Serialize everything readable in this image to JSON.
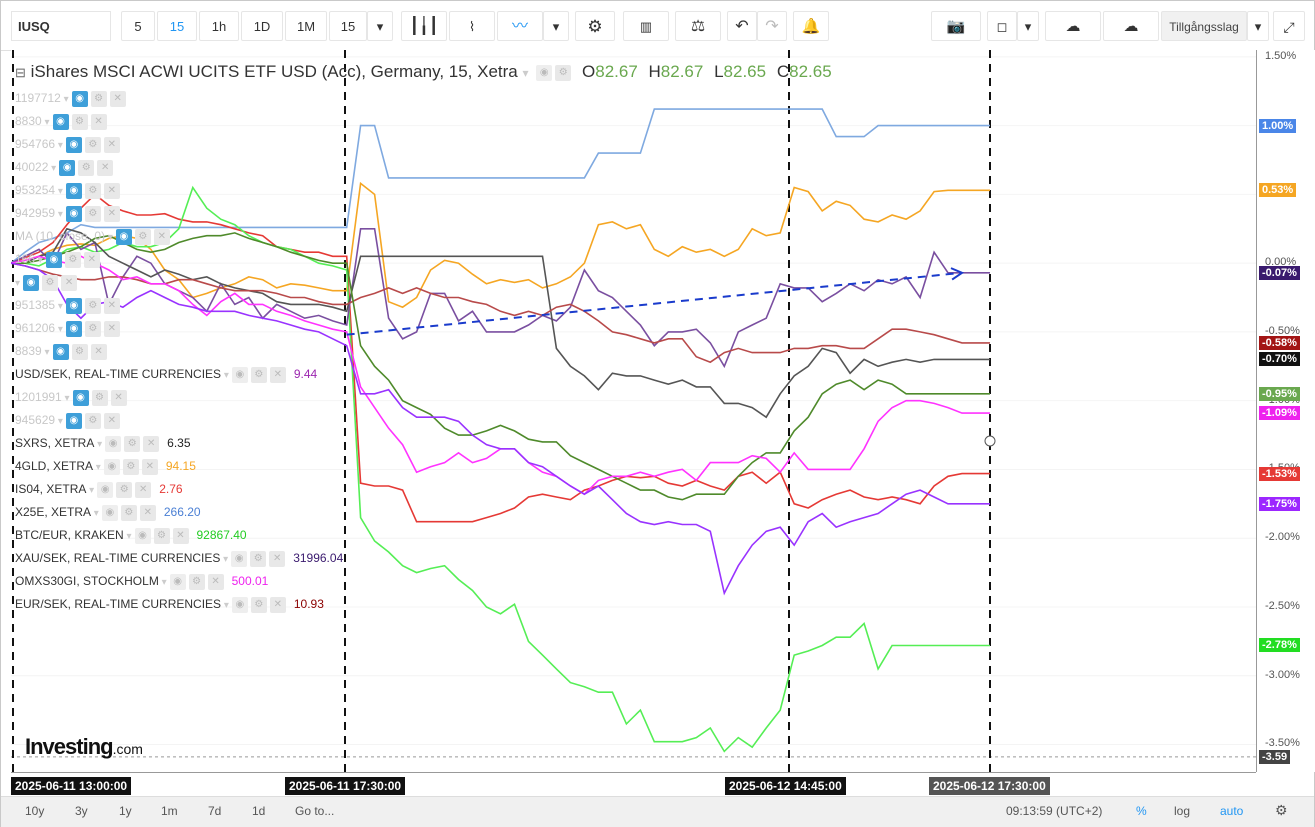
{
  "toolbar": {
    "symbol": "IUSQ",
    "intervals": [
      "5",
      "15",
      "1h",
      "1D",
      "1M",
      "15"
    ],
    "active_interval": "15",
    "asset_class_label": "Tillgångsslag"
  },
  "chart_title": {
    "name": "iShares MSCI ACWI UCITS ETF USD (Acc), Germany, 15, Xetra",
    "o_label": "O",
    "o": "82.67",
    "h_label": "H",
    "h": "82.67",
    "l_label": "L",
    "l": "82.65",
    "c_label": "C",
    "c": "82.65"
  },
  "legend": [
    {
      "label": "1197712",
      "value": "",
      "faded": true
    },
    {
      "label": "8830",
      "value": "",
      "faded": true
    },
    {
      "label": "954766",
      "value": "",
      "faded": true
    },
    {
      "label": "40022",
      "value": "",
      "faded": true
    },
    {
      "label": "953254",
      "value": "",
      "faded": true
    },
    {
      "label": "942959",
      "value": "",
      "faded": true
    },
    {
      "label": "MA (10, close, 0)",
      "value": "",
      "faded": true
    },
    {
      "label": "166",
      "value": "",
      "faded": true
    },
    {
      "label": "",
      "value": "",
      "faded": true
    },
    {
      "label": "951385",
      "value": "",
      "faded": true
    },
    {
      "label": "961206",
      "value": "",
      "faded": true
    },
    {
      "label": "8839",
      "value": "",
      "faded": true
    },
    {
      "label": "USD/SEK, REAL-TIME CURRENCIES",
      "value": "9.44",
      "color": "#9c27b0",
      "faded": false
    },
    {
      "label": "1201991",
      "value": "",
      "faded": true
    },
    {
      "label": "945629",
      "value": "",
      "faded": true
    },
    {
      "label": "SXRS, XETRA",
      "value": "6.35",
      "color": "#222222",
      "faded": false
    },
    {
      "label": "4GLD, XETRA",
      "value": "94.15",
      "color": "#f5a623",
      "faded": false
    },
    {
      "label": "IS04, XETRA",
      "value": "2.76",
      "color": "#e53935",
      "faded": false
    },
    {
      "label": "X25E, XETRA",
      "value": "266.20",
      "color": "#4a7fd4",
      "faded": false
    },
    {
      "label": "BTC/EUR, KRAKEN",
      "value": "92867.40",
      "color": "#22cc22",
      "faded": false
    },
    {
      "label": "XAU/SEK, REAL-TIME CURRENCIES",
      "value": "31996.04",
      "color": "#3a1a6e",
      "faded": false
    },
    {
      "label": "OMXS30GI, STOCKHOLM",
      "value": "500.01",
      "color": "#ee22ee",
      "faded": false
    },
    {
      "label": "EUR/SEK, REAL-TIME CURRENCIES",
      "value": "10.93",
      "color": "#8b0000",
      "faded": false
    }
  ],
  "y_axis": {
    "ticks": [
      "1.50%",
      "1.00%",
      "0.50%",
      "0.00%",
      "-0.50%",
      "-1.00%",
      "-1.50%",
      "-2.00%",
      "-2.50%",
      "-3.00%",
      "-3.50%"
    ],
    "tags": [
      {
        "label": "1.00%",
        "value": 1.0,
        "color": "#4a86e8"
      },
      {
        "label": "0.53%",
        "value": 0.53,
        "color": "#f5a623"
      },
      {
        "label": "-0.07%",
        "value": -0.07,
        "color": "#3a1a6e"
      },
      {
        "label": "-0.58%",
        "value": -0.58,
        "color": "#a31515"
      },
      {
        "label": "-0.70%",
        "value": -0.7,
        "color": "#111111"
      },
      {
        "label": "-0.95%",
        "value": -0.95,
        "color": "#6aa84f"
      },
      {
        "label": "-1.09%",
        "value": -1.09,
        "color": "#ee22ee"
      },
      {
        "label": "-1.53%",
        "value": -1.53,
        "color": "#e53935"
      },
      {
        "label": "-1.75%",
        "value": -1.75,
        "color": "#9c27ff"
      },
      {
        "label": "-2.78%",
        "value": -2.78,
        "color": "#22dd22"
      },
      {
        "label": "-3.59",
        "value": -3.59,
        "color": "#444444"
      }
    ]
  },
  "x_axis": {
    "tags": [
      "2025-06-11 13:00:00",
      "2025-06-11 17:30:00",
      "2025-06-12 14:45:00",
      "2025-06-12 17:30:00"
    ]
  },
  "bottom_bar": {
    "ranges": [
      "10y",
      "3y",
      "1y",
      "1m",
      "7d",
      "1d",
      "Go to..."
    ],
    "clock": "09:13:59 (UTC+2)",
    "percent": "%",
    "log": "log",
    "auto": "auto"
  },
  "logo": {
    "text": "Investing",
    "suffix": ".com"
  },
  "chart_data": {
    "type": "line",
    "ylabel": "",
    "ylim": [
      -3.7,
      1.55
    ],
    "y_scale": "percent",
    "series": [
      {
        "name": "X25E, XETRA",
        "color": "#7fa9e0",
        "values": [
          0.0,
          0.08,
          0.15,
          0.18,
          0.22,
          0.28,
          0.26,
          0.26,
          0.26,
          0.26,
          0.26,
          0.26,
          0.26,
          0.26,
          0.26,
          0.26,
          0.26,
          0.26,
          0.26,
          0.26,
          0.26,
          0.26,
          0.26,
          0.26,
          0.26,
          1.0,
          1.0,
          0.62,
          0.62,
          0.62,
          0.62,
          0.62,
          0.62,
          0.62,
          0.62,
          0.62,
          0.62,
          0.62,
          0.62,
          0.62,
          0.62,
          0.62,
          0.8,
          0.8,
          0.8,
          0.8,
          1.12,
          1.12,
          1.12,
          1.12,
          1.12,
          1.12,
          1.12,
          1.12,
          1.12,
          1.12,
          1.12,
          1.12,
          1.12,
          0.92,
          0.92,
          0.92,
          1.0,
          1.0,
          1.0,
          1.0,
          1.0,
          1.0,
          1.0,
          1.0,
          1.0
        ]
      },
      {
        "name": "4GLD, XETRA",
        "color": "#f5a623",
        "values": [
          0.0,
          0.02,
          0.05,
          0.1,
          0.13,
          0.14,
          0.13,
          0.18,
          0.2,
          0.18,
          0.1,
          -0.05,
          -0.12,
          -0.25,
          -0.22,
          -0.18,
          -0.15,
          -0.1,
          -0.12,
          -0.18,
          -0.15,
          -0.16,
          -0.18,
          -0.2,
          -0.2,
          0.58,
          0.5,
          -0.28,
          -0.32,
          -0.25,
          -0.05,
          0.02,
          0.0,
          -0.08,
          -0.15,
          -0.12,
          -0.14,
          -0.12,
          -0.18,
          -0.15,
          -0.1,
          0.0,
          0.28,
          0.3,
          0.25,
          0.28,
          0.1,
          0.05,
          0.12,
          0.08,
          0.1,
          0.05,
          0.1,
          0.25,
          0.2,
          0.22,
          0.55,
          0.52,
          0.38,
          0.45,
          0.42,
          0.32,
          0.3,
          0.35,
          0.32,
          0.38,
          0.52,
          0.53,
          0.53,
          0.53,
          0.53
        ]
      },
      {
        "name": "IS04, XETRA",
        "color": "#e53935",
        "values": [
          0.0,
          0.04,
          0.08,
          0.15,
          0.28,
          0.4,
          0.5,
          0.42,
          0.38,
          0.35,
          0.35,
          0.36,
          0.32,
          0.3,
          0.3,
          0.28,
          0.25,
          0.22,
          0.2,
          0.12,
          0.1,
          0.08,
          0.08,
          0.05,
          0.05,
          -1.6,
          -1.62,
          -1.62,
          -1.65,
          -1.88,
          -1.88,
          -1.88,
          -1.88,
          -1.88,
          -1.85,
          -1.82,
          -1.78,
          -1.7,
          -1.68,
          -1.7,
          -1.72,
          -1.65,
          -1.62,
          -1.58,
          -1.55,
          -1.56,
          -1.55,
          -1.6,
          -1.62,
          -1.58,
          -1.62,
          -1.65,
          -1.55,
          -1.52,
          -1.6,
          -1.52,
          -1.75,
          -1.78,
          -1.72,
          -1.68,
          -1.65,
          -1.7,
          -1.72,
          -1.7,
          -1.72,
          -1.75,
          -1.62,
          -1.55,
          -1.53,
          -1.53,
          -1.53
        ]
      },
      {
        "name": "BTC/EUR, KRAKEN",
        "color": "#55ee55",
        "values": [
          0.0,
          0.0,
          -0.02,
          0.03,
          0.1,
          0.12,
          0.08,
          0.1,
          0.15,
          0.12,
          0.12,
          0.15,
          0.25,
          0.55,
          0.4,
          0.32,
          0.28,
          0.2,
          0.15,
          0.12,
          0.1,
          0.05,
          0.0,
          -0.02,
          -0.05,
          -1.85,
          -2.02,
          -2.1,
          -2.2,
          -2.25,
          -2.22,
          -2.2,
          -2.3,
          -2.38,
          -2.5,
          -2.55,
          -2.48,
          -2.75,
          -2.85,
          -2.95,
          -3.05,
          -3.08,
          -3.12,
          -3.12,
          -3.35,
          -3.25,
          -3.48,
          -3.48,
          -3.48,
          -3.45,
          -3.38,
          -3.55,
          -3.45,
          -3.52,
          -3.38,
          -3.25,
          -2.85,
          -2.82,
          -2.78,
          -2.72,
          -2.72,
          -2.62,
          -2.95,
          -2.78,
          -2.78,
          -2.78,
          -2.78,
          -2.78,
          -2.78,
          -2.78,
          -2.78
        ]
      },
      {
        "name": "XAU/SEK, REAL-TIME CURRENCIES",
        "color": "#7a4fa0",
        "values": [
          0.0,
          0.05,
          0.1,
          0.0,
          0.22,
          0.1,
          0.15,
          -0.3,
          -0.1,
          0.05,
          0.0,
          -0.15,
          -0.2,
          -0.25,
          -0.35,
          -0.15,
          -0.3,
          -0.25,
          -0.4,
          -0.3,
          -0.35,
          -0.4,
          -0.38,
          -0.42,
          -0.45,
          0.25,
          0.25,
          -0.4,
          -0.55,
          -0.5,
          -0.22,
          -0.22,
          -0.42,
          -0.35,
          -0.5,
          -0.5,
          -0.5,
          -0.45,
          -0.38,
          -0.42,
          -0.32,
          -0.05,
          -0.2,
          -0.25,
          -0.35,
          -0.45,
          -0.6,
          -0.5,
          -0.5,
          -0.48,
          -0.58,
          -0.75,
          -0.5,
          -0.45,
          -0.4,
          -0.15,
          -0.18,
          -0.18,
          -0.28,
          -0.22,
          -0.15,
          -0.2,
          -0.12,
          -0.15,
          -0.1,
          -0.25,
          0.08,
          -0.07,
          -0.07,
          -0.07,
          -0.07
        ]
      },
      {
        "name": "SXRS, XETRA",
        "color": "#555555",
        "values": [
          0.0,
          0.0,
          0.05,
          0.08,
          0.25,
          0.22,
          0.15,
          0.05,
          0.0,
          -0.05,
          -0.1,
          -0.05,
          -0.08,
          -0.12,
          -0.1,
          -0.15,
          -0.18,
          -0.2,
          -0.22,
          -0.28,
          -0.3,
          -0.3,
          -0.3,
          -0.32,
          -0.35,
          0.05,
          0.05,
          0.05,
          0.05,
          0.05,
          0.05,
          0.05,
          0.05,
          0.05,
          0.05,
          0.05,
          0.05,
          0.05,
          0.05,
          -0.62,
          -0.75,
          -0.82,
          -0.92,
          -0.8,
          -0.82,
          -0.82,
          -0.85,
          -0.88,
          -0.85,
          -0.9,
          -0.9,
          -1.02,
          -1.02,
          -1.05,
          -1.12,
          -0.95,
          -0.82,
          -0.75,
          -0.62,
          -0.65,
          -0.8,
          -0.7,
          -0.75,
          -0.72,
          -0.7,
          -0.72,
          -0.7,
          -0.7,
          -0.7,
          -0.7,
          -0.7
        ]
      },
      {
        "name": "EUR/SEK, REAL-TIME CURRENCIES",
        "color": "#b84a4a",
        "values": [
          0.0,
          -0.02,
          -0.05,
          -0.08,
          -0.1,
          -0.12,
          -0.12,
          -0.1,
          -0.1,
          -0.12,
          -0.15,
          -0.15,
          -0.12,
          -0.12,
          -0.15,
          -0.18,
          -0.2,
          -0.2,
          -0.2,
          -0.22,
          -0.25,
          -0.25,
          -0.28,
          -0.3,
          -0.3,
          -0.25,
          -0.22,
          -0.18,
          -0.22,
          -0.18,
          -0.22,
          -0.25,
          -0.25,
          -0.28,
          -0.3,
          -0.35,
          -0.38,
          -0.35,
          -0.38,
          -0.32,
          -0.3,
          -0.35,
          -0.42,
          -0.5,
          -0.52,
          -0.55,
          -0.58,
          -0.55,
          -0.55,
          -0.68,
          -0.72,
          -0.65,
          -0.62,
          -0.65,
          -0.65,
          -0.65,
          -0.62,
          -0.62,
          -0.6,
          -0.6,
          -0.62,
          -0.62,
          -0.55,
          -0.48,
          -0.48,
          -0.5,
          -0.52,
          -0.55,
          -0.58,
          -0.58,
          -0.58
        ]
      },
      {
        "name": "USD/SEK, REAL-TIME CURRENCIES",
        "color": "#4f8a2b",
        "values": [
          0.0,
          0.0,
          0.02,
          0.05,
          0.08,
          0.12,
          0.18,
          0.2,
          0.15,
          0.1,
          0.08,
          0.1,
          0.15,
          0.18,
          0.2,
          0.2,
          0.22,
          0.18,
          0.15,
          0.12,
          0.08,
          0.05,
          0.02,
          0.0,
          0.0,
          -0.6,
          -0.75,
          -0.85,
          -1.0,
          -1.05,
          -1.1,
          -1.2,
          -1.25,
          -1.25,
          -1.22,
          -1.18,
          -1.22,
          -1.28,
          -1.3,
          -1.3,
          -1.4,
          -1.45,
          -1.5,
          -1.55,
          -1.6,
          -1.65,
          -1.65,
          -1.7,
          -1.72,
          -1.68,
          -1.68,
          -1.68,
          -1.55,
          -1.45,
          -1.38,
          -1.38,
          -1.22,
          -1.12,
          -0.95,
          -0.88,
          -0.85,
          -0.92,
          -0.85,
          -0.88,
          -0.95,
          -0.95,
          -0.95,
          -0.95,
          -0.95,
          -0.95,
          -0.95
        ]
      },
      {
        "name": "OMXS30GI, STOCKHOLM",
        "color": "#ff33ff",
        "values": [
          0.0,
          0.02,
          0.05,
          0.02,
          0.0,
          0.05,
          0.0,
          -0.05,
          -0.12,
          -0.1,
          -0.15,
          -0.15,
          -0.2,
          -0.3,
          -0.38,
          -0.28,
          -0.22,
          -0.3,
          -0.3,
          -0.35,
          -0.38,
          -0.42,
          -0.45,
          -0.48,
          -0.5,
          -0.9,
          -1.05,
          -1.2,
          -1.32,
          -1.52,
          -1.48,
          -1.45,
          -1.38,
          -1.45,
          -1.42,
          -1.35,
          -1.35,
          -1.45,
          -1.52,
          -1.55,
          -1.62,
          -1.68,
          -1.58,
          -1.55,
          -1.55,
          -1.52,
          -1.55,
          -1.52,
          -1.5,
          -1.58,
          -1.45,
          -1.45,
          -1.45,
          -1.4,
          -1.42,
          -1.52,
          -1.38,
          -1.5,
          -1.5,
          -1.5,
          -1.5,
          -1.35,
          -1.15,
          -1.05,
          -1.0,
          -1.0,
          -1.02,
          -1.05,
          -1.09,
          -1.09,
          -1.09
        ]
      },
      {
        "name": "",
        "color": "#9933ff",
        "values": [
          0.0,
          -0.02,
          -0.05,
          -0.12,
          -0.3,
          -0.4,
          -0.3,
          -0.28,
          -0.32,
          -0.25,
          -0.2,
          -0.25,
          -0.3,
          -0.32,
          -0.35,
          -0.35,
          -0.35,
          -0.38,
          -0.4,
          -0.42,
          -0.45,
          -0.48,
          -0.5,
          -0.55,
          -0.6,
          -0.95,
          -0.95,
          -0.92,
          -1.05,
          -1.12,
          -1.12,
          -1.12,
          -1.15,
          -1.25,
          -1.32,
          -1.35,
          -1.35,
          -1.45,
          -1.48,
          -1.55,
          -1.62,
          -1.68,
          -1.62,
          -1.72,
          -1.82,
          -1.88,
          -1.9,
          -1.88,
          -1.9,
          -1.9,
          -1.95,
          -2.4,
          -2.2,
          -2.05,
          -1.95,
          -1.92,
          -2.05,
          -1.88,
          -1.82,
          -1.92,
          -1.88,
          -1.85,
          -1.82,
          -1.75,
          -1.68,
          -1.65,
          -1.7,
          -1.75,
          -1.75,
          -1.75,
          -1.75
        ]
      }
    ],
    "trend_arrow": {
      "from": [
        24,
        -0.52
      ],
      "to": [
        68,
        -0.07
      ],
      "color": "#1a3bcc"
    }
  }
}
